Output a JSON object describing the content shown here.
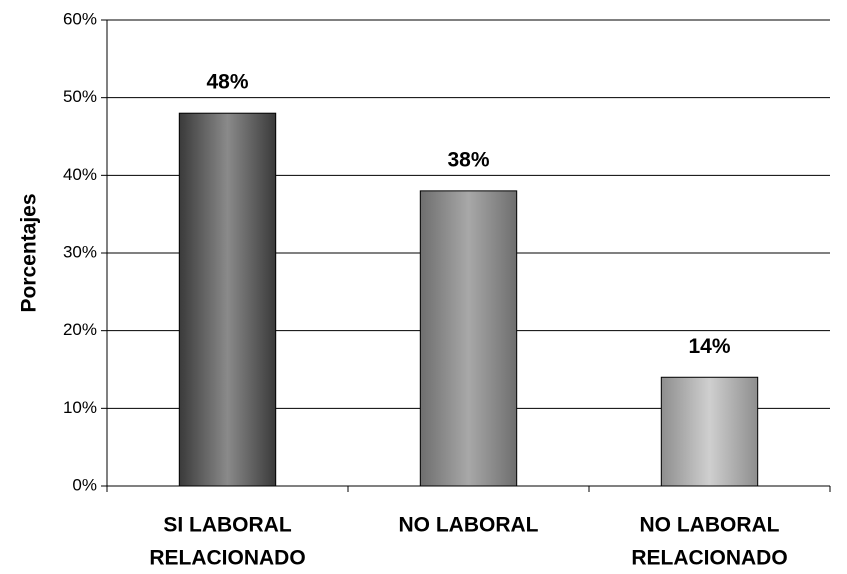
{
  "chart_data": {
    "type": "bar",
    "categories": [
      [
        "SI LABORAL",
        "RELACIONADO"
      ],
      [
        "NO LABORAL"
      ],
      [
        "NO LABORAL",
        "RELACIONADO"
      ]
    ],
    "values": [
      48,
      38,
      14
    ],
    "data_labels": [
      "48%",
      "38%",
      "14%"
    ],
    "title": "",
    "xlabel": "",
    "ylabel": "Porcentajes",
    "ylim": [
      0,
      60
    ],
    "yticks": [
      0,
      10,
      20,
      30,
      40,
      50,
      60
    ],
    "ytick_labels": [
      "0%",
      "10%",
      "20%",
      "30%",
      "40%",
      "50%",
      "60%"
    ],
    "grid": true,
    "legend": "none",
    "colors": {
      "bar_gradients": [
        [
          "#3a3a3a",
          "#8a8a8a",
          "#3a3a3a"
        ],
        [
          "#6e6e6e",
          "#a8a8a8",
          "#6e6e6e"
        ],
        [
          "#8e8e8e",
          "#cfcfcf",
          "#8e8e8e"
        ]
      ],
      "gridline": "#000000",
      "axis": "#000000",
      "text": "#000000"
    }
  }
}
